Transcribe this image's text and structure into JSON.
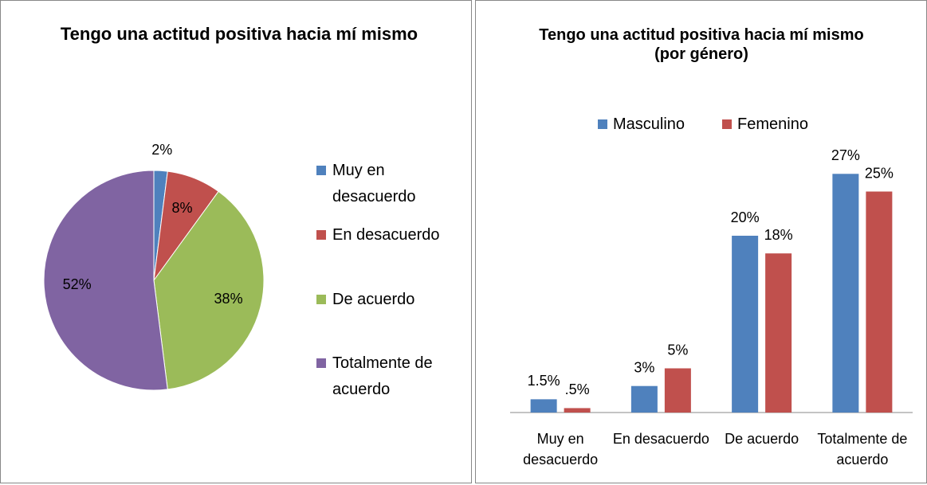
{
  "chart_data": [
    {
      "type": "pie",
      "title": "Tengo una actitud positiva hacia mí mismo",
      "categories": [
        "Muy en desacuerdo",
        "En desacuerdo",
        "De acuerdo",
        "Totalmente de acuerdo"
      ],
      "values": [
        2,
        8,
        38,
        52
      ],
      "value_labels": [
        "2%",
        "8%",
        "38%",
        "52%"
      ],
      "colors": [
        "#4f81bd",
        "#c0504d",
        "#9bbb59",
        "#8064a2"
      ],
      "legend": "right"
    },
    {
      "type": "bar",
      "title": "Tengo una actitud positiva hacia mí mismo (por género)",
      "categories": [
        "Muy en desacuerdo",
        "En desacuerdo",
        "De acuerdo",
        "Totalmente de acuerdo"
      ],
      "series": [
        {
          "name": "Masculino",
          "color": "#4f81bd",
          "values": [
            1.5,
            3,
            20,
            27
          ],
          "value_labels": [
            "1.5%",
            "3%",
            "20%",
            "27%"
          ]
        },
        {
          "name": "Femenino",
          "color": "#c0504d",
          "values": [
            0.5,
            5,
            18,
            25
          ],
          "value_labels": [
            ".5%",
            "5%",
            "18%",
            "25%"
          ]
        }
      ],
      "legend": "top"
    }
  ]
}
